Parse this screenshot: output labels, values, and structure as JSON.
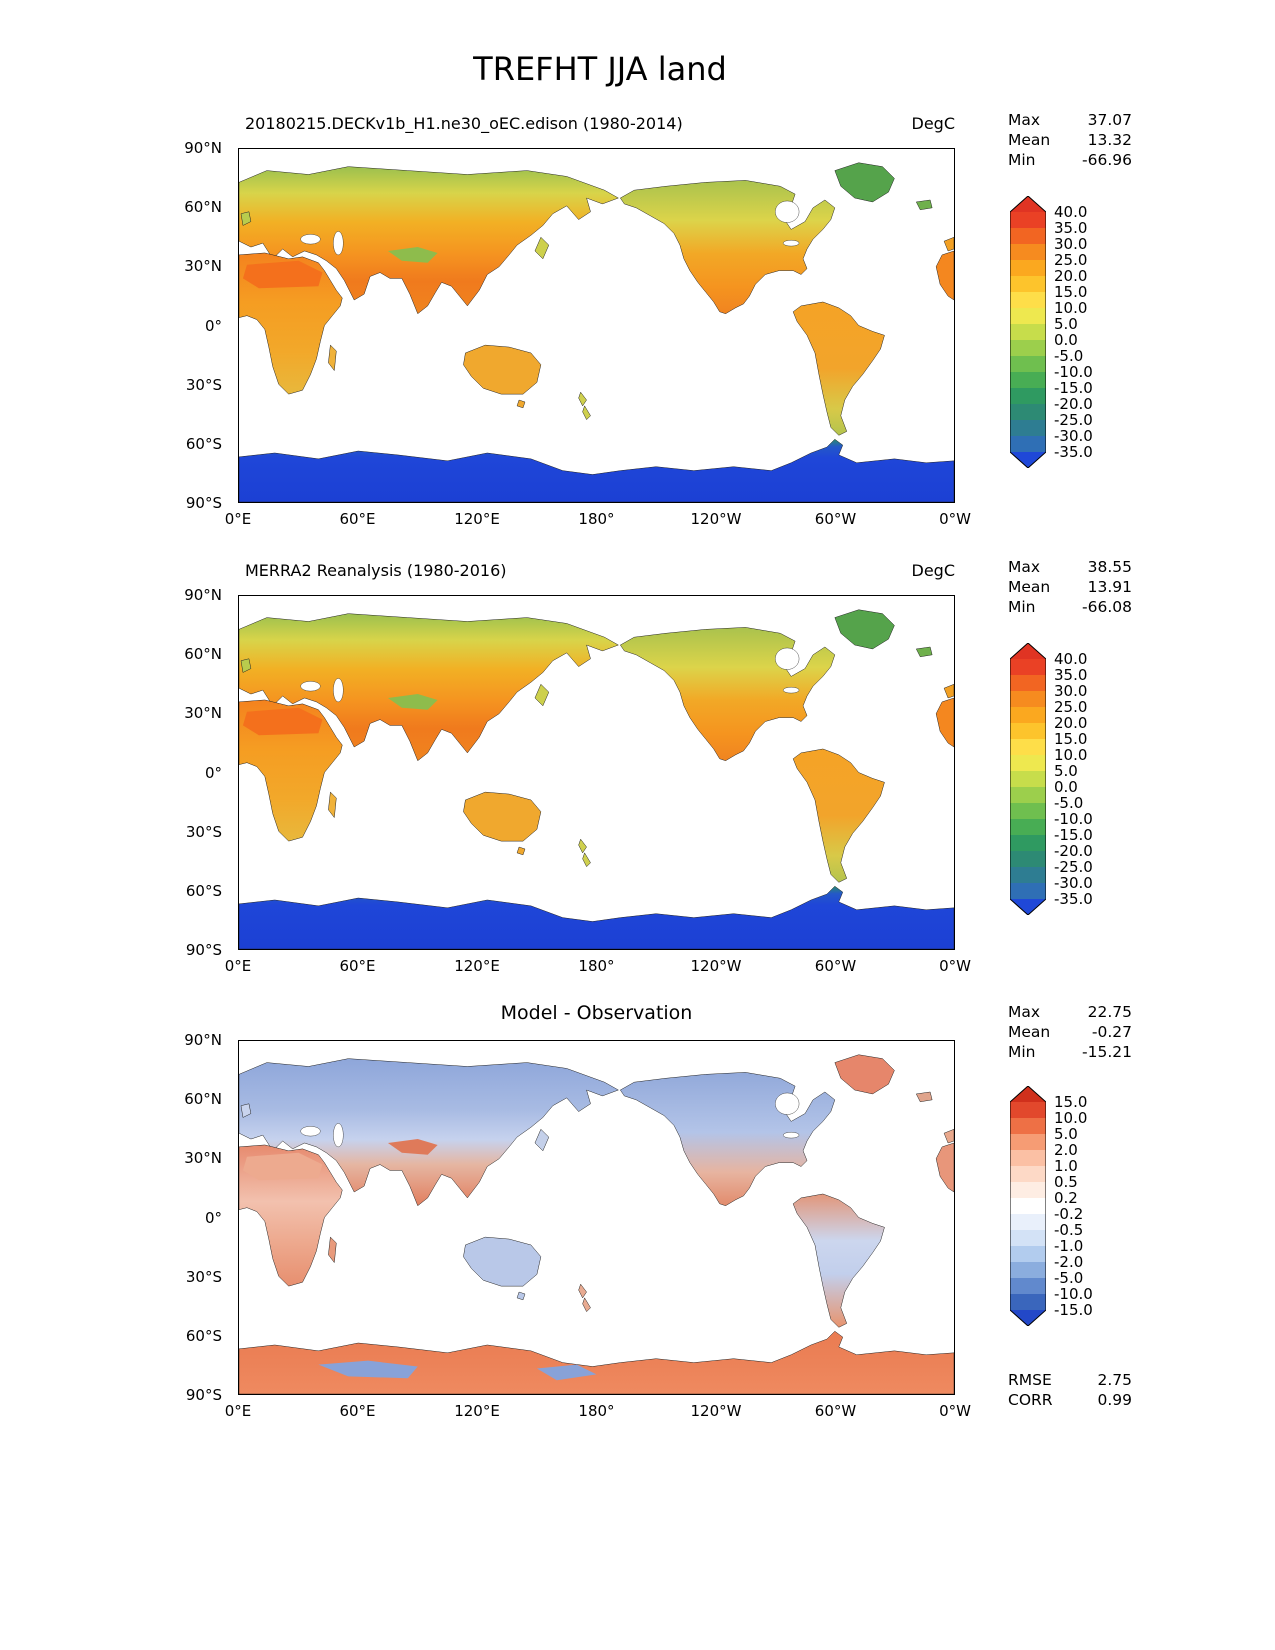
{
  "title": "TREFHT JJA land",
  "stats_labels": {
    "max": "Max",
    "mean": "Mean",
    "min": "Min"
  },
  "axes": {
    "lat_ticks": [
      "90°N",
      "60°N",
      "30°N",
      "0°",
      "30°S",
      "60°S",
      "90°S"
    ],
    "lon_ticks": [
      "0°E",
      "60°E",
      "120°E",
      "180°",
      "120°W",
      "60°W",
      "0°W"
    ]
  },
  "panels": [
    {
      "title": "20180215.DECKv1b_H1.ne30_oEC.edison (1980-2014)",
      "units": "DegC",
      "stats": {
        "max": "37.07",
        "mean": "13.32",
        "min": "-66.96"
      },
      "colorbar": {
        "ticks": [
          "40.0",
          "35.0",
          "30.0",
          "25.0",
          "20.0",
          "15.0",
          "10.0",
          "5.0",
          "0.0",
          "-5.0",
          "-10.0",
          "-15.0",
          "-20.0",
          "-25.0",
          "-30.0",
          "-35.0"
        ],
        "colors": [
          "#e03423",
          "#ea4125",
          "#f26522",
          "#f68b1f",
          "#fba81f",
          "#fdc42c",
          "#fede49",
          "#eee84f",
          "#c7dd4b",
          "#9ccf4c",
          "#6fbf4f",
          "#48ad54",
          "#2f9a61",
          "#2d8a74",
          "#2e7d92",
          "#2f6fb5",
          "#1f48d8"
        ]
      }
    },
    {
      "title": "MERRA2 Reanalysis (1980-2016)",
      "units": "DegC",
      "stats": {
        "max": "38.55",
        "mean": "13.91",
        "min": "-66.08"
      },
      "colorbar": {
        "ticks": [
          "40.0",
          "35.0",
          "30.0",
          "25.0",
          "20.0",
          "15.0",
          "10.0",
          "5.0",
          "0.0",
          "-5.0",
          "-10.0",
          "-15.0",
          "-20.0",
          "-25.0",
          "-30.0",
          "-35.0"
        ],
        "colors": [
          "#e03423",
          "#ea4125",
          "#f26522",
          "#f68b1f",
          "#fba81f",
          "#fdc42c",
          "#fede49",
          "#eee84f",
          "#c7dd4b",
          "#9ccf4c",
          "#6fbf4f",
          "#48ad54",
          "#2f9a61",
          "#2d8a74",
          "#2e7d92",
          "#2f6fb5",
          "#1f48d8"
        ]
      }
    },
    {
      "title": "Model - Observation",
      "units": "",
      "stats": {
        "max": "22.75",
        "mean": "-0.27",
        "min": "-15.21"
      },
      "colorbar": {
        "ticks": [
          "15.0",
          "10.0",
          "5.0",
          "2.0",
          "1.0",
          "0.5",
          "0.2",
          "-0.2",
          "-0.5",
          "-1.0",
          "-2.0",
          "-5.0",
          "-10.0",
          "-15.0"
        ],
        "colors": [
          "#d0301c",
          "#e2482c",
          "#ee7045",
          "#f69c74",
          "#fbc0a4",
          "#fdd9c6",
          "#feede3",
          "#ffffff",
          "#e9f0fb",
          "#d3e2f6",
          "#b2ccee",
          "#8badde",
          "#6189cd",
          "#3a66bc",
          "#2348c8"
        ]
      },
      "metrics": {
        "rmse_label": "RMSE",
        "rmse": "2.75",
        "corr_label": "CORR",
        "corr": "0.99"
      }
    }
  ],
  "chart_data": {
    "type": "heatmap",
    "figure_title": "TREFHT JJA land",
    "variable": "TREFHT",
    "season": "JJA",
    "region": "land",
    "units": "DegC",
    "projection": "cylindrical equidistant, longitude 0E to 0W (Greenwich at edges)",
    "lat_ticks": [
      "90°N",
      "60°N",
      "30°N",
      "0°",
      "30°S",
      "60°S",
      "90°S"
    ],
    "lon_ticks": [
      "0°E",
      "60°E",
      "120°E",
      "180°",
      "120°W",
      "60°W",
      "0°W"
    ],
    "lat_range": [
      -90,
      90
    ],
    "lon_range": [
      0,
      360
    ],
    "panels": [
      {
        "title": "20180215.DECKv1b_H1.ne30_oEC.edison (1980-2014)",
        "role": "model",
        "units": "DegC",
        "max": 37.07,
        "mean": 13.32,
        "min": -66.96,
        "colorbar_levels": [
          40,
          35,
          30,
          25,
          20,
          15,
          10,
          5,
          0,
          -5,
          -10,
          -15,
          -20,
          -25,
          -30,
          -35
        ],
        "colorbar_style": "rainbow red-orange-yellow-green-blue with triangular out-of-range arrows"
      },
      {
        "title": "MERRA2 Reanalysis (1980-2016)",
        "role": "observation",
        "units": "DegC",
        "max": 38.55,
        "mean": 13.91,
        "min": -66.08,
        "colorbar_levels": [
          40,
          35,
          30,
          25,
          20,
          15,
          10,
          5,
          0,
          -5,
          -10,
          -15,
          -20,
          -25,
          -30,
          -35
        ],
        "colorbar_style": "rainbow red-orange-yellow-green-blue with triangular out-of-range arrows"
      },
      {
        "title": "Model - Observation",
        "role": "difference",
        "max": 22.75,
        "mean": -0.27,
        "min": -15.21,
        "rmse": 2.75,
        "corr": 0.99,
        "colorbar_levels": [
          15,
          10,
          5,
          2,
          1,
          0.5,
          0.2,
          -0.2,
          -0.5,
          -1,
          -2,
          -5,
          -10,
          -15
        ],
        "colorbar_style": "diverging blue-white-red with triangular out-of-range arrows"
      }
    ],
    "notes": "Land-only surface air temperature maps; oceans masked white. Model and reanalysis maps are warm (orange) over tropics/mid-latitudes, green over high northern latitudes and Greenland, deep blue over Antarctica. Difference map shows blues over northern Eurasia/North America and reds over coastlines, Africa and Antarctica."
  }
}
